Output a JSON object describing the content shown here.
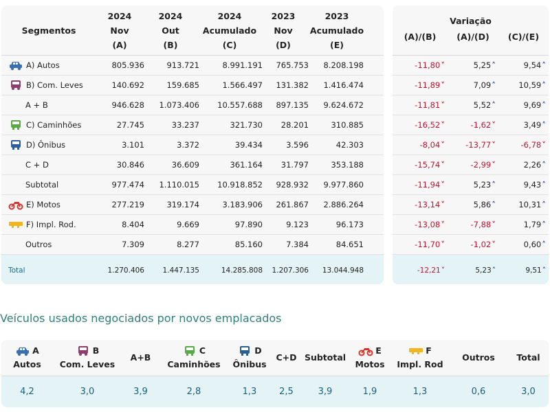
{
  "main_table": {
    "headers": [
      {
        "label": "Segmentos"
      },
      {
        "year": "2024",
        "period": "Nov",
        "code": "(A)"
      },
      {
        "year": "2024",
        "period": "Out",
        "code": "(B)"
      },
      {
        "year": "2024",
        "period": "Acumulado",
        "code": "(C)"
      },
      {
        "year": "2023",
        "period": "Nov",
        "code": "(D)"
      },
      {
        "year": "2023",
        "period": "Acumulado",
        "code": "(E)"
      }
    ],
    "rows": [
      {
        "label": "A) Autos",
        "icon": "car-icon",
        "values": [
          "805.936",
          "913.721",
          "8.991.191",
          "765.753",
          "8.208.198"
        ]
      },
      {
        "label": "B) Com. Leves",
        "icon": "van-icon",
        "values": [
          "140.692",
          "159.685",
          "1.566.497",
          "131.382",
          "1.416.474"
        ]
      },
      {
        "label": "A + B",
        "icon": "",
        "values": [
          "946.628",
          "1.073.406",
          "10.557.688",
          "897.135",
          "9.624.672"
        ]
      },
      {
        "label": "C) Caminhões",
        "icon": "truck-icon",
        "values": [
          "27.745",
          "33.237",
          "321.730",
          "28.201",
          "310.885"
        ]
      },
      {
        "label": "D) Ônibus",
        "icon": "bus-icon",
        "values": [
          "3.101",
          "3.372",
          "39.434",
          "3.596",
          "42.303"
        ]
      },
      {
        "label": "C + D",
        "icon": "",
        "values": [
          "30.846",
          "36.609",
          "361.164",
          "31.797",
          "353.188"
        ]
      },
      {
        "label": "Subtotal",
        "icon": "",
        "values": [
          "977.474",
          "1.110.015",
          "10.918.852",
          "928.932",
          "9.977.860"
        ]
      },
      {
        "label": "E) Motos",
        "icon": "motorcycle-icon",
        "values": [
          "277.219",
          "319.174",
          "3.183.906",
          "261.867",
          "2.886.264"
        ]
      },
      {
        "label": "F) Impl. Rod.",
        "icon": "trailer-icon",
        "values": [
          "8.404",
          "9.669",
          "97.890",
          "9.123",
          "96.173"
        ]
      },
      {
        "label": "Outros",
        "icon": "",
        "values": [
          "7.309",
          "8.277",
          "85.160",
          "7.384",
          "84.651"
        ]
      }
    ],
    "total": {
      "label": "Total",
      "values": [
        "1.270.406",
        "1.447.135",
        "14.285.808",
        "1.207.306",
        "13.044.948"
      ]
    }
  },
  "variation_table": {
    "title": "Variação",
    "columns": [
      "(A)/(B)",
      "(A)/(D)",
      "(C)/(E)"
    ],
    "rows": [
      [
        "-11,80",
        "5,25",
        "9,54"
      ],
      [
        "-11,89",
        "7,09",
        "10,59"
      ],
      [
        "-11,81",
        "5,52",
        "9,69"
      ],
      [
        "-16,52",
        "-1,62",
        "3,49"
      ],
      [
        "-8,04",
        "-13,77",
        "-6,78"
      ],
      [
        "-15,74",
        "-2,99",
        "2,26"
      ],
      [
        "-11,94",
        "5,23",
        "9,43"
      ],
      [
        "-13,14",
        "5,86",
        "10,31"
      ],
      [
        "-13,08",
        "-7,88",
        "1,79"
      ],
      [
        "-11,70",
        "-1,02",
        "0,60"
      ]
    ],
    "total": [
      "-12,21",
      "5,23",
      "9,51"
    ]
  },
  "used_section": {
    "title": "Veículos usados negociados por novos emplacados",
    "columns": [
      {
        "code": "A",
        "name": "Autos",
        "icon": "car-icon",
        "value": "4,2"
      },
      {
        "code": "B",
        "name": "Com. Leves",
        "icon": "van-icon",
        "value": "3,0"
      },
      {
        "code": "A+B",
        "name": "",
        "icon": "",
        "value": "3,9"
      },
      {
        "code": "C",
        "name": "Caminhões",
        "icon": "truck-icon",
        "value": "2,8"
      },
      {
        "code": "D",
        "name": "Ônibus",
        "icon": "bus-icon",
        "value": "1,3"
      },
      {
        "code": "C+D",
        "name": "",
        "icon": "",
        "value": "2,5"
      },
      {
        "code": "Subtotal",
        "name": "",
        "icon": "",
        "value": "3,9"
      },
      {
        "code": "E",
        "name": "Motos",
        "icon": "motorcycle-icon",
        "value": "1,9"
      },
      {
        "code": "F",
        "name": "Impl. Rod",
        "icon": "trailer-icon",
        "value": "1,3"
      },
      {
        "code": "Outros",
        "name": "",
        "icon": "",
        "value": "0,6"
      },
      {
        "code": "Total",
        "name": "",
        "icon": "",
        "value": "3,0"
      }
    ]
  },
  "colors": {
    "car": "#3a6fb0",
    "van": "#8e3b6e",
    "truck": "#5aa845",
    "bus": "#2a5d9a",
    "motorcycle": "#d9342b",
    "trailer": "#f2b51b",
    "negative": "#c8102e",
    "up_arrow": "#1f3d99"
  }
}
